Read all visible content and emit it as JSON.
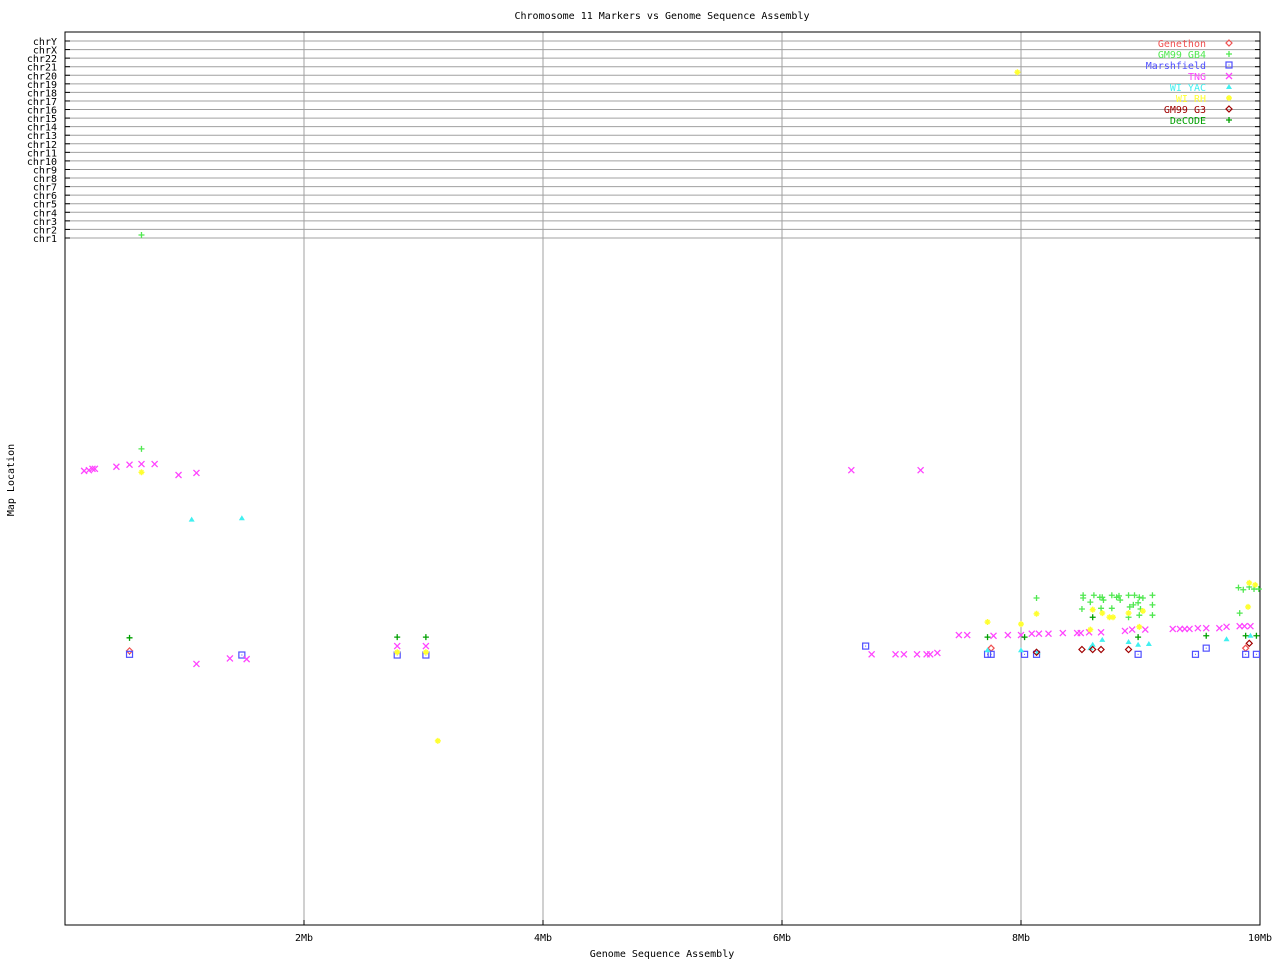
{
  "chart_data": {
    "type": "scatter",
    "title": "Chromosome 11 Markers vs Genome Sequence Assembly",
    "xlabel": "Genome Sequence Assembly",
    "ylabel": "Map Location",
    "xlim": [
      0,
      10
    ],
    "x_unit": "Mb",
    "x_ticks": [
      "2Mb",
      "4Mb",
      "6Mb",
      "8Mb",
      "10Mb"
    ],
    "x_tick_values": [
      2,
      4,
      6,
      8,
      10
    ],
    "ylim": [
      0,
      100
    ],
    "chromosome_rows": [
      "chrY",
      "chrX",
      "chr22",
      "chr21",
      "chr20",
      "chr19",
      "chr18",
      "chr17",
      "chr16",
      "chr15",
      "chr14",
      "chr13",
      "chr12",
      "chr11",
      "chr10",
      "chr9",
      "chr8",
      "chr7",
      "chr6",
      "chr5",
      "chr4",
      "chr3",
      "chr2",
      "chr1"
    ],
    "grid": true,
    "legend_position": "top-right",
    "series": [
      {
        "name": "Genethon",
        "marker": "diamond",
        "color": "#f05050",
        "points": [
          [
            0.54,
            39.9
          ],
          [
            7.75,
            40.3
          ],
          [
            9.88,
            40.3
          ]
        ]
      },
      {
        "name": "GM99 GB4",
        "marker": "plus",
        "color": "#50e850",
        "points": [
          [
            0.64,
            69.3
          ],
          [
            8.13,
            47.6
          ],
          [
            8.52,
            48.0
          ],
          [
            8.52,
            47.6
          ],
          [
            8.58,
            47.0
          ],
          [
            8.61,
            48.0
          ],
          [
            8.66,
            47.7
          ],
          [
            8.68,
            47.7
          ],
          [
            8.69,
            47.3
          ],
          [
            8.76,
            48.0
          ],
          [
            8.8,
            47.7
          ],
          [
            8.82,
            47.9
          ],
          [
            8.83,
            47.3
          ],
          [
            8.9,
            48.0
          ],
          [
            8.95,
            48.0
          ],
          [
            8.99,
            47.7
          ],
          [
            9.02,
            47.6
          ],
          [
            9.1,
            48.0
          ],
          [
            8.51,
            46.0
          ],
          [
            8.67,
            46.1
          ],
          [
            8.76,
            46.1
          ],
          [
            8.91,
            46.3
          ],
          [
            8.94,
            46.6
          ],
          [
            8.98,
            46.9
          ],
          [
            9.0,
            46.0
          ],
          [
            9.1,
            46.6
          ],
          [
            8.99,
            45.1
          ],
          [
            9.1,
            45.1
          ],
          [
            8.9,
            44.8
          ],
          [
            9.82,
            49.1
          ],
          [
            9.86,
            48.8
          ],
          [
            9.91,
            49.2
          ],
          [
            9.95,
            48.9
          ],
          [
            9.99,
            48.9
          ],
          [
            9.83,
            45.4
          ]
        ],
        "off_chromosome": [
          {
            "chr": "chr1",
            "x": 0.64
          }
        ]
      },
      {
        "name": "Marshfield",
        "marker": "square",
        "color": "#5050ff",
        "points": [
          [
            0.54,
            39.4
          ],
          [
            1.48,
            39.3
          ],
          [
            2.78,
            39.3
          ],
          [
            3.02,
            39.3
          ],
          [
            6.7,
            40.6
          ],
          [
            7.72,
            39.4
          ],
          [
            7.75,
            39.4
          ],
          [
            8.03,
            39.4
          ],
          [
            8.13,
            39.4
          ],
          [
            8.98,
            39.4
          ],
          [
            9.46,
            39.4
          ],
          [
            9.55,
            40.3
          ],
          [
            9.88,
            39.4
          ],
          [
            9.97,
            39.4
          ]
        ]
      },
      {
        "name": "TNG",
        "marker": "x",
        "color": "#ff44ff",
        "points": [
          [
            0.16,
            66.1
          ],
          [
            0.2,
            66.2
          ],
          [
            0.23,
            66.4
          ],
          [
            0.25,
            66.4
          ],
          [
            0.43,
            66.7
          ],
          [
            0.54,
            67.0
          ],
          [
            0.64,
            67.1
          ],
          [
            0.75,
            67.1
          ],
          [
            0.95,
            65.5
          ],
          [
            1.1,
            65.8
          ],
          [
            1.1,
            38.0
          ],
          [
            1.38,
            38.8
          ],
          [
            1.52,
            38.7
          ],
          [
            2.78,
            40.6
          ],
          [
            3.02,
            40.6
          ],
          [
            6.58,
            66.2
          ],
          [
            7.16,
            66.2
          ],
          [
            6.75,
            39.4
          ],
          [
            6.95,
            39.4
          ],
          [
            7.02,
            39.4
          ],
          [
            7.13,
            39.4
          ],
          [
            7.21,
            39.4
          ],
          [
            7.24,
            39.4
          ],
          [
            7.3,
            39.6
          ],
          [
            7.48,
            42.2
          ],
          [
            7.55,
            42.2
          ],
          [
            7.77,
            42.1
          ],
          [
            7.89,
            42.2
          ],
          [
            8.0,
            42.2
          ],
          [
            8.09,
            42.4
          ],
          [
            8.15,
            42.4
          ],
          [
            8.23,
            42.4
          ],
          [
            8.35,
            42.5
          ],
          [
            8.47,
            42.5
          ],
          [
            8.5,
            42.5
          ],
          [
            8.57,
            42.6
          ],
          [
            8.67,
            42.6
          ],
          [
            8.87,
            42.8
          ],
          [
            8.93,
            43.0
          ],
          [
            9.04,
            43.0
          ],
          [
            9.27,
            43.1
          ],
          [
            9.33,
            43.1
          ],
          [
            9.37,
            43.1
          ],
          [
            9.41,
            43.1
          ],
          [
            9.48,
            43.2
          ],
          [
            9.55,
            43.2
          ],
          [
            9.66,
            43.2
          ],
          [
            9.72,
            43.4
          ],
          [
            9.83,
            43.5
          ],
          [
            9.87,
            43.5
          ],
          [
            9.92,
            43.5
          ]
        ]
      },
      {
        "name": "WI YAC",
        "marker": "triangle",
        "color": "#40f0f0",
        "points": [
          [
            1.06,
            59.0
          ],
          [
            1.48,
            59.2
          ],
          [
            7.72,
            40.0
          ],
          [
            8.0,
            40.0
          ],
          [
            8.14,
            39.7
          ],
          [
            8.68,
            41.5
          ],
          [
            8.9,
            41.2
          ],
          [
            8.98,
            40.8
          ],
          [
            9.07,
            40.9
          ],
          [
            8.6,
            40.8
          ],
          [
            8.58,
            40.3
          ],
          [
            9.72,
            41.6
          ],
          [
            9.92,
            42.1
          ]
        ]
      },
      {
        "name": "WI RH",
        "marker": "star",
        "color": "#ffff30",
        "points": [
          [
            0.64,
            65.9
          ],
          [
            2.78,
            39.7
          ],
          [
            3.02,
            39.7
          ],
          [
            3.12,
            26.8
          ],
          [
            7.72,
            44.1
          ],
          [
            8.0,
            43.8
          ],
          [
            8.13,
            45.3
          ],
          [
            8.6,
            45.9
          ],
          [
            8.68,
            45.4
          ],
          [
            8.74,
            44.8
          ],
          [
            8.77,
            44.8
          ],
          [
            8.9,
            45.4
          ],
          [
            9.02,
            45.7
          ],
          [
            8.58,
            43.0
          ],
          [
            8.99,
            43.4
          ],
          [
            9.91,
            49.8
          ],
          [
            9.96,
            49.5
          ],
          [
            9.9,
            46.3
          ]
        ],
        "off_chromosome": [
          {
            "chr": "chr20",
            "x": 7.97
          }
        ]
      },
      {
        "name": "GM99 G3",
        "marker": "diamond",
        "color": "#a00000",
        "points": [
          [
            8.13,
            39.7
          ],
          [
            8.51,
            40.1
          ],
          [
            8.6,
            40.1
          ],
          [
            8.67,
            40.1
          ],
          [
            8.9,
            40.1
          ],
          [
            9.91,
            41.0
          ]
        ]
      },
      {
        "name": "DeCODE",
        "marker": "plus",
        "color": "#00a000",
        "points": [
          [
            0.54,
            41.8
          ],
          [
            2.78,
            41.9
          ],
          [
            3.02,
            41.9
          ],
          [
            7.72,
            41.9
          ],
          [
            8.03,
            41.9
          ],
          [
            8.98,
            41.9
          ],
          [
            9.55,
            42.1
          ],
          [
            9.88,
            42.1
          ],
          [
            9.97,
            42.1
          ],
          [
            8.6,
            44.8
          ]
        ]
      }
    ]
  }
}
